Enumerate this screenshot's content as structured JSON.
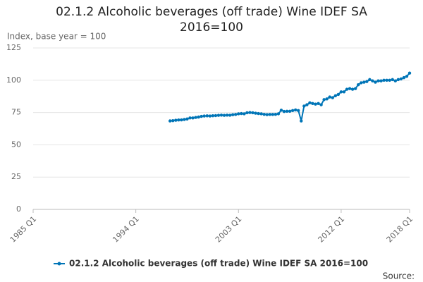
{
  "chart_data": {
    "type": "line",
    "title": "02.1.2 Alcoholic beverages (off trade) Wine IDEF SA 2016=100",
    "y_label": "Index, base year = 100",
    "source": "Source:",
    "categories": [
      "1985 Q1",
      null,
      null,
      null,
      null,
      null,
      null,
      null,
      null,
      null,
      null,
      null,
      null,
      null,
      null,
      null,
      null,
      null,
      null,
      null,
      null,
      null,
      null,
      null,
      null,
      null,
      null,
      null,
      null,
      null,
      null,
      null,
      null,
      null,
      null,
      null,
      "1994 Q1",
      null,
      null,
      null,
      null,
      null,
      null,
      null,
      null,
      null,
      null,
      null,
      null,
      null,
      null,
      null,
      null,
      null,
      null,
      null,
      null,
      null,
      null,
      null,
      null,
      null,
      null,
      null,
      null,
      null,
      null,
      null,
      null,
      null,
      null,
      null,
      "2003 Q1",
      null,
      null,
      null,
      null,
      null,
      null,
      null,
      null,
      null,
      null,
      null,
      null,
      null,
      null,
      null,
      null,
      null,
      null,
      null,
      null,
      null,
      null,
      null,
      null,
      null,
      null,
      null,
      null,
      null,
      null,
      null,
      null,
      null,
      null,
      null,
      "2012 Q1",
      null,
      null,
      null,
      null,
      null,
      null,
      null,
      null,
      null,
      null,
      null,
      null,
      null,
      null,
      null,
      null,
      null,
      null,
      null,
      null,
      null,
      null,
      null,
      "2018 Q1"
    ],
    "series": [
      {
        "name": "02.1.2 Alcoholic beverages (off trade) Wine IDEF SA 2016=100",
        "color": "#0075b7",
        "values": [
          null,
          null,
          null,
          null,
          null,
          null,
          null,
          null,
          null,
          null,
          null,
          null,
          null,
          null,
          null,
          null,
          null,
          null,
          null,
          null,
          null,
          null,
          null,
          null,
          null,
          null,
          null,
          null,
          null,
          null,
          null,
          null,
          null,
          null,
          null,
          null,
          null,
          null,
          null,
          null,
          null,
          null,
          null,
          null,
          null,
          null,
          null,
          null,
          68.5,
          68.7,
          69,
          69.2,
          69.3,
          69.6,
          70,
          70.8,
          70.8,
          71.2,
          71.5,
          72,
          72.3,
          72.4,
          72.3,
          72.5,
          72.6,
          72.8,
          73,
          72.8,
          73,
          72.9,
          73.3,
          73.5,
          74,
          74.2,
          74,
          74.8,
          75,
          74.8,
          74.5,
          74.2,
          74,
          73.6,
          73.4,
          73.5,
          73.5,
          73.6,
          74,
          76.8,
          75.8,
          76,
          76,
          76.5,
          77,
          76.5,
          68.5,
          80,
          81,
          82.5,
          82,
          81.5,
          82,
          81,
          85,
          85.5,
          87,
          86.5,
          88,
          89,
          91,
          91,
          93,
          93.5,
          93,
          93.5,
          96.5,
          98,
          98.5,
          99,
          100.5,
          99.5,
          98.5,
          99.5,
          99.5,
          100,
          100,
          100,
          100.5,
          99.5,
          100.5,
          101,
          102,
          103,
          105.5
        ]
      }
    ],
    "ylim": [
      0,
      125
    ],
    "yticks": [
      0,
      25,
      50,
      75,
      100,
      125
    ],
    "grid": true
  }
}
